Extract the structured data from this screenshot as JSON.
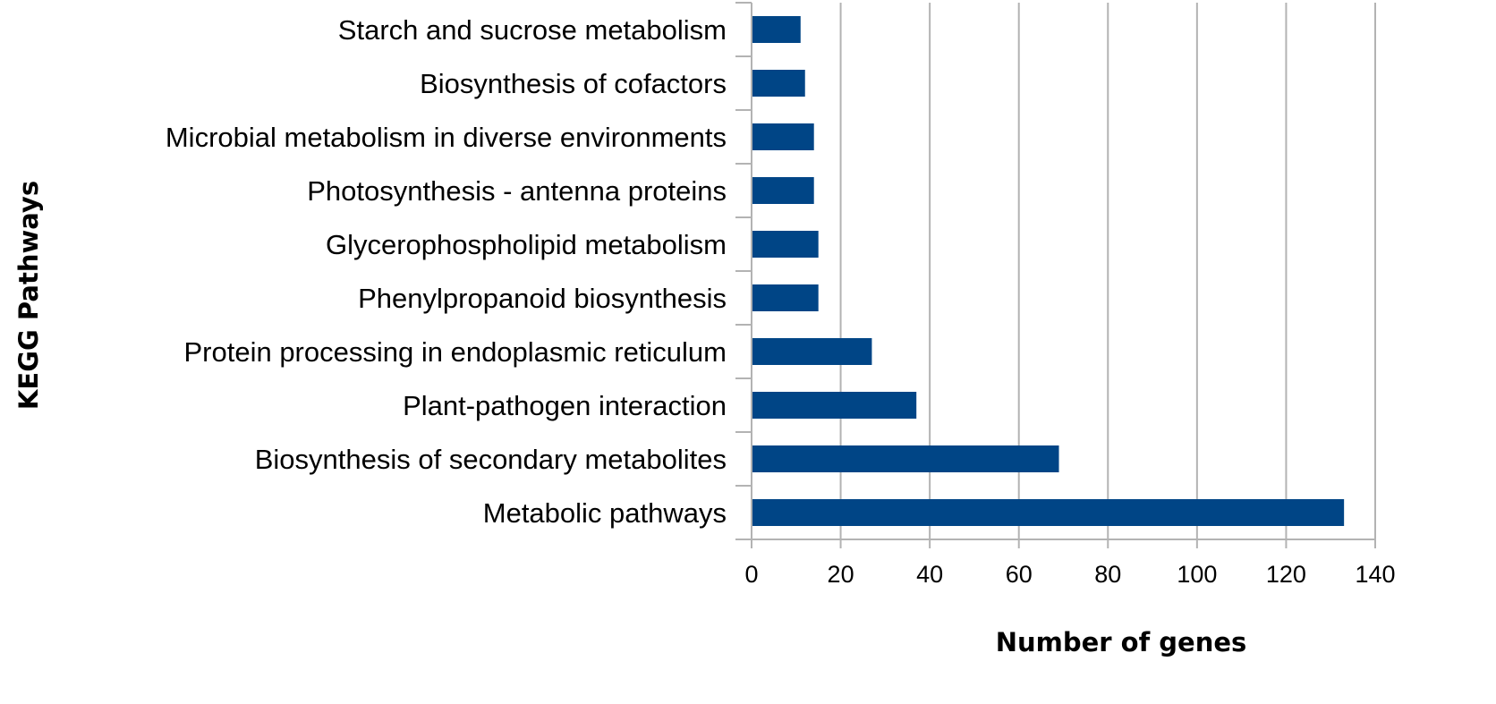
{
  "chart_data": {
    "type": "bar",
    "orientation": "horizontal",
    "categories": [
      "Starch and sucrose metabolism",
      "Biosynthesis of cofactors",
      "Microbial metabolism in diverse environments",
      "Photosynthesis - antenna proteins",
      "Glycerophospholipid metabolism",
      "Phenylpropanoid biosynthesis",
      "Protein processing in endoplasmic reticulum",
      "Plant-pathogen interaction",
      "Biosynthesis of secondary metabolites",
      "Metabolic pathways"
    ],
    "values": [
      11,
      12,
      14,
      14,
      15,
      15,
      27,
      37,
      69,
      133
    ],
    "xlabel": "Number of genes",
    "ylabel": "KEGG Pathways",
    "xlim": [
      0,
      140
    ],
    "xticks": [
      0,
      20,
      40,
      60,
      80,
      100,
      120,
      140
    ],
    "grid": "vertical",
    "legend": "none",
    "colors": {
      "bar": "#004586",
      "grid": "#b3b3b3",
      "axis": "#b3b3b3"
    }
  }
}
